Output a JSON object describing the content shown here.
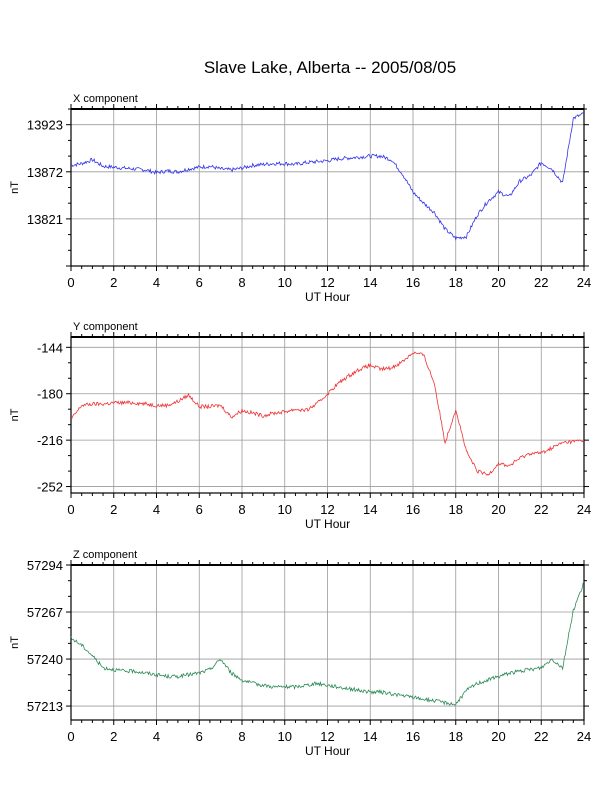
{
  "title": "Slave Lake, Alberta -- 2005/08/05",
  "chart_data": [
    {
      "type": "line",
      "title": "X component",
      "xlabel": "UT Hour",
      "ylabel": "nT",
      "xlim": [
        0,
        24
      ],
      "ylim": [
        13770,
        13940
      ],
      "xticks": [
        0,
        2,
        4,
        6,
        8,
        10,
        12,
        14,
        16,
        18,
        20,
        22,
        24
      ],
      "yticks": [
        13923,
        13872,
        13821
      ],
      "grid": true,
      "color": "#3333ee",
      "series": [
        {
          "x": [
            0,
            0.5,
            1,
            1.5,
            2,
            2.5,
            3,
            3.5,
            4,
            4.5,
            5,
            5.5,
            6,
            6.5,
            7,
            7.5,
            8,
            8.5,
            9,
            9.5,
            10,
            10.5,
            11,
            11.5,
            12,
            12.5,
            13,
            13.5,
            14,
            14.5,
            15,
            15.5,
            16,
            16.5,
            17,
            17.5,
            18,
            18.5,
            19,
            19.5,
            20,
            20.5,
            21,
            21.5,
            22,
            22.5,
            23,
            23.5,
            24
          ],
          "values": [
            13879,
            13881,
            13885,
            13878,
            13877,
            13876,
            13875,
            13874,
            13871,
            13873,
            13872,
            13875,
            13877,
            13878,
            13875,
            13874,
            13876,
            13879,
            13880,
            13881,
            13881,
            13880,
            13882,
            13883,
            13884,
            13886,
            13887,
            13888,
            13889,
            13889,
            13885,
            13870,
            13850,
            13838,
            13828,
            13810,
            13800,
            13802,
            13825,
            13840,
            13850,
            13845,
            13862,
            13868,
            13882,
            13875,
            13860,
            13930,
            13935
          ]
        }
      ]
    },
    {
      "type": "line",
      "title": "Y component",
      "xlabel": "UT Hour",
      "ylabel": "nT",
      "xlim": [
        0,
        24
      ],
      "ylim": [
        -257,
        -136
      ],
      "xticks": [
        0,
        2,
        4,
        6,
        8,
        10,
        12,
        14,
        16,
        18,
        20,
        22,
        24
      ],
      "yticks": [
        -144,
        -180,
        -216,
        -252
      ],
      "grid": true,
      "color": "#ee3333",
      "series": [
        {
          "x": [
            0,
            0.5,
            1,
            1.5,
            2,
            2.5,
            3,
            3.5,
            4,
            4.5,
            5,
            5.5,
            6,
            6.5,
            7,
            7.5,
            8,
            8.5,
            9,
            9.5,
            10,
            10.5,
            11,
            11.5,
            12,
            12.5,
            13,
            13.5,
            14,
            14.5,
            15,
            15.5,
            16,
            16.5,
            17,
            17.5,
            18,
            18.5,
            19,
            19.5,
            20,
            20.5,
            21,
            21.5,
            22,
            22.5,
            23,
            23.5,
            24
          ],
          "values": [
            -200,
            -189,
            -188,
            -188,
            -187,
            -187,
            -187,
            -188,
            -189,
            -189,
            -186,
            -181,
            -190,
            -190,
            -189,
            -198,
            -193,
            -195,
            -197,
            -195,
            -194,
            -192,
            -193,
            -188,
            -180,
            -172,
            -166,
            -161,
            -158,
            -161,
            -160,
            -155,
            -148,
            -150,
            -172,
            -218,
            -192,
            -225,
            -240,
            -243,
            -234,
            -236,
            -230,
            -226,
            -226,
            -222,
            -218,
            -217,
            -216
          ]
        }
      ]
    },
    {
      "type": "line",
      "title": "Z component",
      "xlabel": "UT Hour",
      "ylabel": "nT",
      "xlim": [
        0,
        24
      ],
      "ylim": [
        57205,
        57294
      ],
      "xticks": [
        0,
        2,
        4,
        6,
        8,
        10,
        12,
        14,
        16,
        18,
        20,
        22,
        24
      ],
      "yticks": [
        57294,
        57267,
        57240,
        57213
      ],
      "grid": true,
      "color": "#2e8b57",
      "series": [
        {
          "x": [
            0,
            0.5,
            1,
            1.5,
            2,
            2.5,
            3,
            3.5,
            4,
            4.5,
            5,
            5.5,
            6,
            6.5,
            7,
            7.5,
            8,
            8.5,
            9,
            9.5,
            10,
            10.5,
            11,
            11.5,
            12,
            12.5,
            13,
            13.5,
            14,
            14.5,
            15,
            15.5,
            16,
            16.5,
            17,
            17.5,
            18,
            18.5,
            19,
            19.5,
            20,
            20.5,
            21,
            21.5,
            22,
            22.5,
            23,
            23.5,
            24
          ],
          "values": [
            57252,
            57248,
            57242,
            57235,
            57234,
            57233,
            57233,
            57232,
            57231,
            57230,
            57230,
            57231,
            57232,
            57234,
            57240,
            57232,
            57228,
            57226,
            57225,
            57224,
            57224,
            57224,
            57225,
            57226,
            57225,
            57224,
            57223,
            57222,
            57221,
            57221,
            57220,
            57219,
            57218,
            57217,
            57216,
            57215,
            57214,
            57222,
            57226,
            57228,
            57230,
            57232,
            57233,
            57234,
            57235,
            57240,
            57235,
            57268,
            57284
          ]
        }
      ]
    }
  ]
}
